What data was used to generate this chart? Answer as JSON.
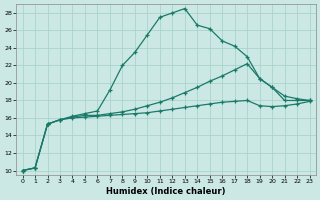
{
  "xlabel": "Humidex (Indice chaleur)",
  "background_color": "#cce8e4",
  "grid_color": "#a8d4cc",
  "line_color": "#1a7a6a",
  "xlim": [
    -0.5,
    23.5
  ],
  "ylim": [
    9.5,
    29.0
  ],
  "xticks": [
    0,
    1,
    2,
    3,
    4,
    5,
    6,
    7,
    8,
    9,
    10,
    11,
    12,
    13,
    14,
    15,
    16,
    17,
    18,
    19,
    20,
    21,
    22,
    23
  ],
  "yticks": [
    10,
    12,
    14,
    16,
    18,
    20,
    22,
    24,
    26,
    28
  ],
  "line1_x": [
    0,
    1,
    2,
    3,
    4,
    5,
    6,
    7,
    8,
    9,
    10,
    11,
    12,
    13,
    14,
    15,
    16,
    17,
    18,
    19,
    20,
    21,
    22,
    23
  ],
  "line1_y": [
    10.0,
    10.3,
    15.3,
    15.8,
    16.2,
    16.5,
    16.8,
    19.2,
    22.0,
    23.5,
    25.5,
    27.5,
    28.0,
    28.5,
    26.6,
    26.2,
    24.8,
    24.2,
    23.0,
    20.5,
    19.5,
    18.0,
    18.0,
    18.0
  ],
  "line2_x": [
    0,
    1,
    2,
    3,
    4,
    5,
    6,
    7,
    8,
    9,
    10,
    11,
    12,
    13,
    14,
    15,
    16,
    17,
    18,
    19,
    20,
    21,
    22,
    23
  ],
  "line2_y": [
    10.0,
    10.3,
    15.3,
    15.8,
    16.1,
    16.3,
    16.3,
    16.5,
    16.7,
    17.0,
    17.4,
    17.8,
    18.3,
    18.9,
    19.5,
    20.2,
    20.8,
    21.5,
    22.2,
    20.5,
    19.5,
    18.5,
    18.2,
    18.0
  ],
  "line3_x": [
    0,
    1,
    2,
    3,
    4,
    5,
    6,
    7,
    8,
    9,
    10,
    11,
    12,
    13,
    14,
    15,
    16,
    17,
    18,
    19,
    20,
    21,
    22,
    23
  ],
  "line3_y": [
    10.0,
    10.3,
    15.3,
    15.8,
    16.0,
    16.1,
    16.2,
    16.3,
    16.4,
    16.5,
    16.6,
    16.8,
    17.0,
    17.2,
    17.4,
    17.6,
    17.8,
    17.9,
    18.0,
    17.4,
    17.3,
    17.4,
    17.6,
    17.9
  ]
}
